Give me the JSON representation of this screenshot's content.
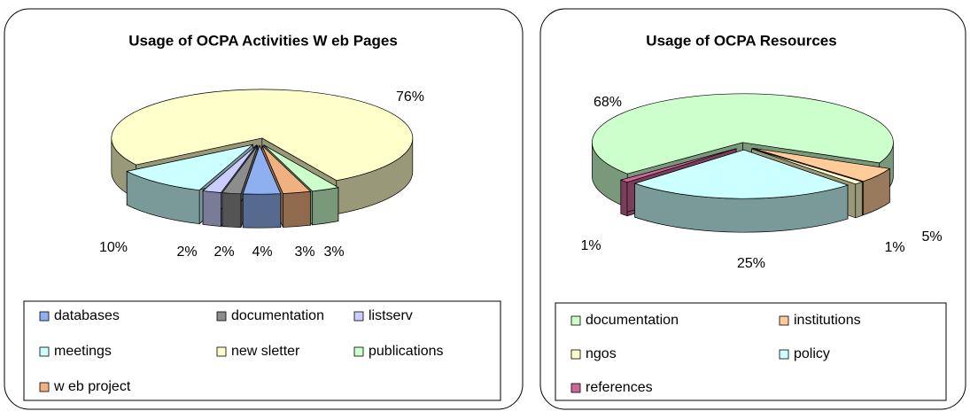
{
  "chart_data": [
    {
      "type": "pie3d",
      "title": "Usage of OCPA Activities W eb Pages",
      "categories": [
        "databases",
        "documentation",
        "listserv",
        "meetings",
        "new sletter",
        "publications",
        "w eb project"
      ],
      "values": [
        4,
        2,
        2,
        10,
        76,
        3,
        3
      ],
      "value_labels": [
        "4%",
        "2%",
        "2%",
        "10%",
        "76%",
        "3%",
        "3%"
      ],
      "colors": [
        "#8fb0f0",
        "#8c8c8c",
        "#ccccff",
        "#ccffff",
        "#ffffcc",
        "#ccffcc",
        "#f0b080"
      ],
      "legend": "bottom"
    },
    {
      "type": "pie3d",
      "title": "Usage of OCPA Resources",
      "categories": [
        "documentation",
        "institutions",
        "ngos",
        "policy",
        "references"
      ],
      "values": [
        68,
        5,
        1,
        25,
        1
      ],
      "value_labels": [
        "68%",
        "5%",
        "1%",
        "25%",
        "1%"
      ],
      "colors": [
        "#ccffcc",
        "#ffcc99",
        "#ffffcc",
        "#ccffff",
        "#cc6699"
      ],
      "legend": "bottom"
    }
  ]
}
